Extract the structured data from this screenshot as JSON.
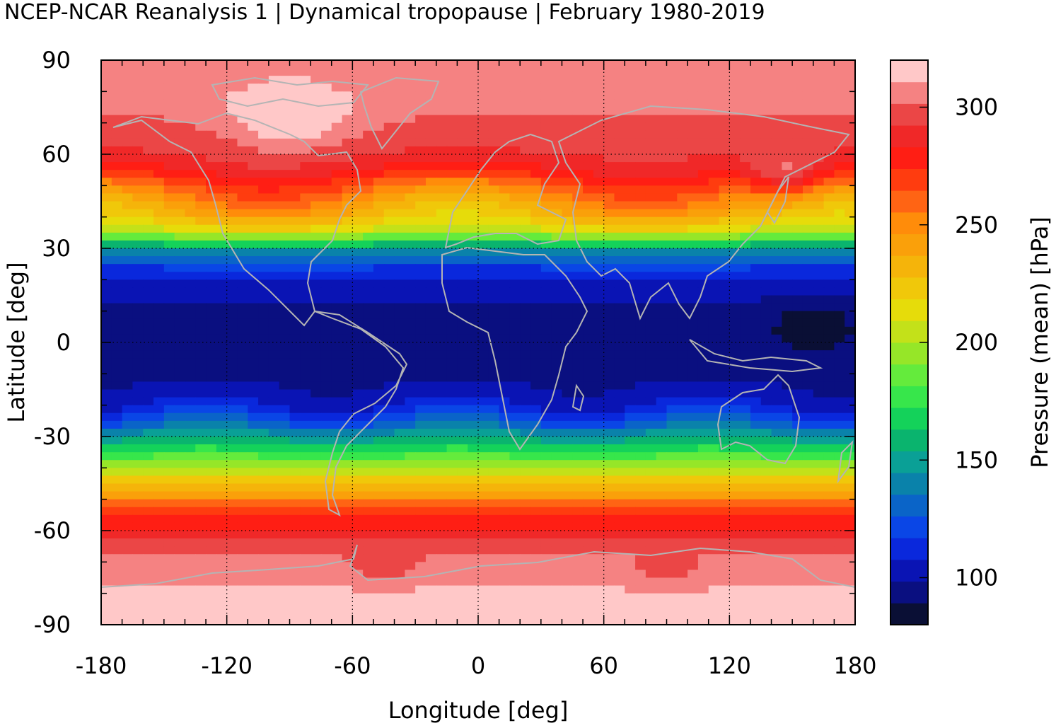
{
  "chart_data": {
    "type": "heatmap",
    "title": "NCEP-NCAR Reanalysis 1 | Dynamical tropopause | February 1980-2019",
    "xlabel": "Longitude [deg]",
    "ylabel": "Latitude [deg]",
    "colorbar_label": "Pressure (mean) [hPa]",
    "xlim": [
      -180,
      180
    ],
    "ylim": [
      -90,
      90
    ],
    "x_ticks": [
      -180,
      -120,
      -60,
      0,
      60,
      120,
      180
    ],
    "y_ticks": [
      90,
      60,
      30,
      0,
      -30,
      -60,
      -90
    ],
    "x_tick_labels": [
      "-180",
      "-120",
      "-60",
      "0",
      "60",
      "120",
      "180"
    ],
    "y_tick_labels": [
      "90",
      "60",
      "30",
      "0",
      "-30",
      "-60",
      "-90"
    ],
    "colorbar_range": [
      80,
      320
    ],
    "colorbar_ticks": [
      100,
      150,
      200,
      250,
      300
    ],
    "colorbar_tick_labels": [
      "100",
      "150",
      "200",
      "250",
      "300"
    ],
    "grid": true,
    "coastline_color": "#b4b4b4",
    "zonal_mean_profile": {
      "lat": [
        -90,
        -80,
        -70,
        -65,
        -60,
        -55,
        -50,
        -45,
        -40,
        -35,
        -30,
        -25,
        -20,
        -15,
        -10,
        -5,
        0,
        5,
        10,
        15,
        20,
        25,
        30,
        35,
        40,
        45,
        50,
        55,
        60,
        65,
        70,
        75,
        80,
        90
      ],
      "pressure": [
        312,
        312,
        305,
        300,
        285,
        272,
        250,
        225,
        200,
        175,
        150,
        125,
        108,
        100,
        95,
        93,
        93,
        93,
        95,
        100,
        108,
        120,
        150,
        205,
        230,
        245,
        262,
        282,
        292,
        297,
        300,
        305,
        305,
        305
      ]
    }
  },
  "colorbar_colors": [
    "#0a0f35",
    "#0a0f80",
    "#0a14b4",
    "#0a28dc",
    "#0a46e6",
    "#0a64c8",
    "#0a82aa",
    "#0aa096",
    "#0ab46e",
    "#14d25a",
    "#37e64b",
    "#64eb3c",
    "#96e628",
    "#c3e119",
    "#e6dc0a",
    "#f0c80a",
    "#f5b40a",
    "#faa00a",
    "#ff8c0a",
    "#ff6414",
    "#ff3c0f",
    "#ff1e14",
    "#f02828",
    "#eb4646",
    "#f58282",
    "#ffc8c8"
  ]
}
